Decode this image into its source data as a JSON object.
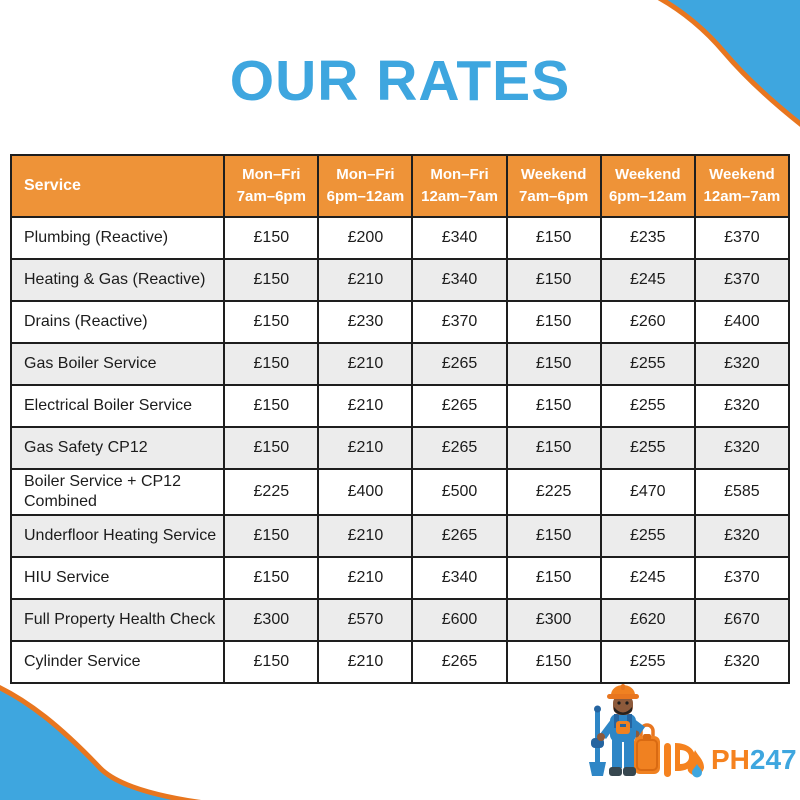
{
  "title": "OUR RATES",
  "colors": {
    "accent_blue": "#3EA6DF",
    "header_orange": "#EE9338",
    "logo_orange": "#F5821F",
    "curve_line_orange": "#E8761F",
    "row_alt_gray": "#ECECEC",
    "table_border": "#1E1E1E"
  },
  "table": {
    "service_header": "Service",
    "columns": [
      {
        "line1": "Mon–Fri",
        "line2": "7am–6pm"
      },
      {
        "line1": "Mon–Fri",
        "line2": "6pm–12am"
      },
      {
        "line1": "Mon–Fri",
        "line2": "12am–7am"
      },
      {
        "line1": "Weekend",
        "line2": "7am–6pm"
      },
      {
        "line1": "Weekend",
        "line2": "6pm–12am"
      },
      {
        "line1": "Weekend",
        "line2": "12am–7am"
      }
    ],
    "rows": [
      {
        "service": "Plumbing (Reactive)",
        "prices": [
          "£150",
          "£200",
          "£340",
          "£150",
          "£235",
          "£370"
        ]
      },
      {
        "service": "Heating & Gas (Reactive)",
        "prices": [
          "£150",
          "£210",
          "£340",
          "£150",
          "£245",
          "£370"
        ]
      },
      {
        "service": "Drains (Reactive)",
        "prices": [
          "£150",
          "£230",
          "£370",
          "£150",
          "£260",
          "£400"
        ]
      },
      {
        "service": "Gas Boiler Service",
        "prices": [
          "£150",
          "£210",
          "£265",
          "£150",
          "£255",
          "£320"
        ]
      },
      {
        "service": "Electrical Boiler Service",
        "prices": [
          "£150",
          "£210",
          "£265",
          "£150",
          "£255",
          "£320"
        ]
      },
      {
        "service": "Gas Safety CP12",
        "prices": [
          "£150",
          "£210",
          "£265",
          "£150",
          "£255",
          "£320"
        ]
      },
      {
        "service": "Boiler Service + CP12 Combined",
        "prices": [
          "£225",
          "£400",
          "£500",
          "£225",
          "£470",
          "£585"
        ]
      },
      {
        "service": "Underfloor Heating Service",
        "prices": [
          "£150",
          "£210",
          "£265",
          "£150",
          "£255",
          "£320"
        ]
      },
      {
        "service": "HIU Service",
        "prices": [
          "£150",
          "£210",
          "£340",
          "£150",
          "£245",
          "£370"
        ]
      },
      {
        "service": "Full Property Health Check",
        "prices": [
          "£300",
          "£570",
          "£600",
          "£300",
          "£620",
          "£670"
        ]
      },
      {
        "service": "Cylinder Service",
        "prices": [
          "£150",
          "£210",
          "£265",
          "£150",
          "£255",
          "£320"
        ]
      }
    ]
  },
  "logo": {
    "text_orange": "PH",
    "text_blue": "247"
  }
}
